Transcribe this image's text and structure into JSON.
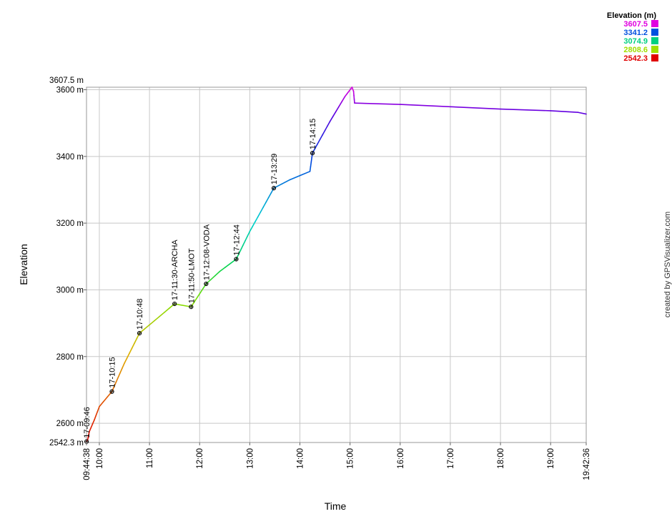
{
  "chart_data": {
    "type": "line",
    "xlabel": "Time",
    "ylabel": "Elevation",
    "credit": "created by GPSVisualizer.com",
    "x_start_label": "09:44:38",
    "x_end_label": "19:42:36",
    "x_range_hours": [
      9.7439,
      19.71
    ],
    "y_range": [
      2542.3,
      3607.5
    ],
    "y_max_label": "3607.5 m",
    "y_min_label": "2542.3 m",
    "y_ticks": [
      {
        "value": 2600,
        "label": "2600 m"
      },
      {
        "value": 2800,
        "label": "2800 m"
      },
      {
        "value": 3000,
        "label": "3000 m"
      },
      {
        "value": 3200,
        "label": "3200 m"
      },
      {
        "value": 3400,
        "label": "3400 m"
      },
      {
        "value": 3600,
        "label": "3600 m"
      }
    ],
    "x_ticks": [
      {
        "value": 10,
        "label": "10:00"
      },
      {
        "value": 11,
        "label": "11:00"
      },
      {
        "value": 12,
        "label": "12:00"
      },
      {
        "value": 13,
        "label": "13:00"
      },
      {
        "value": 14,
        "label": "14:00"
      },
      {
        "value": 15,
        "label": "15:00"
      },
      {
        "value": 16,
        "label": "16:00"
      },
      {
        "value": 17,
        "label": "17:00"
      },
      {
        "value": 18,
        "label": "18:00"
      },
      {
        "value": 19,
        "label": "19:00"
      }
    ],
    "grid": true,
    "legend": {
      "title": "Elevation (m)",
      "placement": "top-right",
      "entries": [
        {
          "label": "3607.5",
          "color": "#e000e0"
        },
        {
          "label": "3341.2",
          "color": "#0050e0"
        },
        {
          "label": "3074.9",
          "color": "#00d080"
        },
        {
          "label": "2808.6",
          "color": "#a0e000"
        },
        {
          "label": "2542.3",
          "color": "#e00000"
        }
      ]
    },
    "series": [
      {
        "points": [
          [
            9.7439,
            2545
          ],
          [
            9.77,
            2552
          ],
          [
            9.8,
            2575
          ],
          [
            9.9,
            2610
          ],
          [
            10.0,
            2650
          ],
          [
            10.25,
            2695
          ],
          [
            10.5,
            2780
          ],
          [
            10.8,
            2870
          ],
          [
            11.0,
            2895
          ],
          [
            11.5,
            2958
          ],
          [
            11.83,
            2949
          ],
          [
            12.13,
            3018
          ],
          [
            12.4,
            3055
          ],
          [
            12.73,
            3092
          ],
          [
            13.0,
            3175
          ],
          [
            13.48,
            3305
          ],
          [
            13.8,
            3330
          ],
          [
            14.2,
            3355
          ],
          [
            14.25,
            3410
          ],
          [
            14.6,
            3505
          ],
          [
            14.9,
            3580
          ],
          [
            15.04,
            3607.5
          ],
          [
            15.07,
            3595
          ],
          [
            15.09,
            3560
          ],
          [
            16.0,
            3556
          ],
          [
            17.0,
            3549
          ],
          [
            18.0,
            3542
          ],
          [
            19.0,
            3537
          ],
          [
            19.55,
            3532
          ],
          [
            19.71,
            3527
          ]
        ]
      }
    ],
    "waypoints": [
      {
        "x": 9.745,
        "y": 2545,
        "label": "17-09:46"
      },
      {
        "x": 10.25,
        "y": 2695,
        "label": "17-10:15"
      },
      {
        "x": 10.8,
        "y": 2870,
        "label": "17-10:48"
      },
      {
        "x": 11.5,
        "y": 2958,
        "label": "17-11:30-ARCHA"
      },
      {
        "x": 11.83,
        "y": 2949,
        "label": "17-11:50-LMOT"
      },
      {
        "x": 12.13,
        "y": 3018,
        "label": "17-12:08-VODA"
      },
      {
        "x": 12.73,
        "y": 3092,
        "label": "17-12:44"
      },
      {
        "x": 13.48,
        "y": 3305,
        "label": "17-13:29"
      },
      {
        "x": 14.25,
        "y": 3410,
        "label": "17-14:15"
      }
    ]
  }
}
